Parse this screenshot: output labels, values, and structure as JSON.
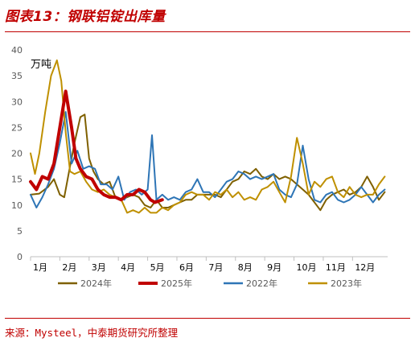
{
  "header": {
    "title": "图表13：钢联铝锭出库量"
  },
  "footer": {
    "source": "来源：Mysteel，中泰期货研究所整理"
  },
  "chart_data": {
    "type": "line",
    "unit_label": "万吨",
    "xlabel": "",
    "ylabel": "",
    "ylim": [
      0,
      40
    ],
    "yticks": [
      0,
      5,
      10,
      15,
      20,
      25,
      30,
      35,
      40
    ],
    "x_range": [
      0,
      12.2
    ],
    "month_labels": [
      "1月",
      "2月",
      "3月",
      "4月",
      "5月",
      "6月",
      "7月",
      "8月",
      "9月",
      "10月",
      "11月",
      "12月"
    ],
    "grid": false,
    "legend_position": "bottom",
    "series": [
      {
        "name": "2024年",
        "color": "#7f6000",
        "width": 2,
        "points": [
          [
            0,
            12
          ],
          [
            0.3,
            12.2
          ],
          [
            0.6,
            13.5
          ],
          [
            0.8,
            15
          ],
          [
            1.0,
            12
          ],
          [
            1.15,
            11.5
          ],
          [
            1.3,
            16
          ],
          [
            1.5,
            22
          ],
          [
            1.7,
            27
          ],
          [
            1.85,
            27.5
          ],
          [
            2.0,
            19
          ],
          [
            2.15,
            16.5
          ],
          [
            2.3,
            15
          ],
          [
            2.5,
            14
          ],
          [
            2.7,
            14.5
          ],
          [
            2.9,
            11.5
          ],
          [
            3.1,
            11
          ],
          [
            3.3,
            11.5
          ],
          [
            3.5,
            12
          ],
          [
            3.7,
            11.5
          ],
          [
            3.9,
            10
          ],
          [
            4.1,
            9.5
          ],
          [
            4.3,
            11
          ],
          [
            4.5,
            9.5
          ],
          [
            4.7,
            9.5
          ],
          [
            4.9,
            10
          ],
          [
            5.1,
            10.5
          ],
          [
            5.3,
            11
          ],
          [
            5.5,
            11
          ],
          [
            5.7,
            12
          ],
          [
            5.9,
            12
          ],
          [
            6.1,
            12
          ],
          [
            6.3,
            12
          ],
          [
            6.5,
            11.5
          ],
          [
            6.7,
            13
          ],
          [
            6.9,
            14.5
          ],
          [
            7.1,
            15
          ],
          [
            7.3,
            16.5
          ],
          [
            7.5,
            16
          ],
          [
            7.7,
            17
          ],
          [
            7.9,
            15.5
          ],
          [
            8.1,
            15
          ],
          [
            8.3,
            16
          ],
          [
            8.5,
            15
          ],
          [
            8.7,
            15.5
          ],
          [
            8.9,
            15
          ],
          [
            9.1,
            14
          ],
          [
            9.3,
            13
          ],
          [
            9.5,
            12
          ],
          [
            9.7,
            10.5
          ],
          [
            9.9,
            9
          ],
          [
            10.1,
            11
          ],
          [
            10.3,
            12
          ],
          [
            10.5,
            12.5
          ],
          [
            10.7,
            13
          ],
          [
            10.9,
            12
          ],
          [
            11.1,
            12.5
          ],
          [
            11.3,
            13.5
          ],
          [
            11.5,
            15.5
          ],
          [
            11.7,
            13.5
          ],
          [
            11.9,
            11
          ],
          [
            12.1,
            12.5
          ]
        ]
      },
      {
        "name": "2025年",
        "color": "#c00000",
        "width": 4,
        "points": [
          [
            0,
            14.5
          ],
          [
            0.2,
            13
          ],
          [
            0.4,
            15.5
          ],
          [
            0.6,
            15
          ],
          [
            0.8,
            18
          ],
          [
            1.0,
            25
          ],
          [
            1.2,
            32
          ],
          [
            1.4,
            25
          ],
          [
            1.55,
            19
          ],
          [
            1.7,
            17
          ],
          [
            1.9,
            15.5
          ],
          [
            2.1,
            15
          ],
          [
            2.3,
            13
          ],
          [
            2.5,
            12
          ],
          [
            2.7,
            11.5
          ],
          [
            2.9,
            11.5
          ],
          [
            3.1,
            11
          ],
          [
            3.3,
            12
          ],
          [
            3.5,
            12
          ],
          [
            3.7,
            13
          ],
          [
            3.9,
            12.5
          ],
          [
            4.1,
            11
          ],
          [
            4.25,
            10.5
          ],
          [
            4.5,
            11
          ]
        ]
      },
      {
        "name": "2022年",
        "color": "#2e75b6",
        "width": 2,
        "points": [
          [
            0,
            12
          ],
          [
            0.2,
            9.5
          ],
          [
            0.4,
            11.5
          ],
          [
            0.6,
            14
          ],
          [
            0.8,
            17
          ],
          [
            1.0,
            22
          ],
          [
            1.2,
            28
          ],
          [
            1.4,
            18
          ],
          [
            1.6,
            20.5
          ],
          [
            1.8,
            17
          ],
          [
            2.0,
            17.5
          ],
          [
            2.2,
            17
          ],
          [
            2.4,
            14
          ],
          [
            2.6,
            14
          ],
          [
            2.8,
            13
          ],
          [
            3.0,
            15.5
          ],
          [
            3.2,
            11
          ],
          [
            3.4,
            12.5
          ],
          [
            3.6,
            13
          ],
          [
            3.8,
            12
          ],
          [
            4.0,
            13
          ],
          [
            4.15,
            23.5
          ],
          [
            4.3,
            11
          ],
          [
            4.5,
            12
          ],
          [
            4.7,
            11
          ],
          [
            4.9,
            11.5
          ],
          [
            5.1,
            11
          ],
          [
            5.3,
            12.5
          ],
          [
            5.5,
            13
          ],
          [
            5.7,
            15
          ],
          [
            5.9,
            12.5
          ],
          [
            6.1,
            12.5
          ],
          [
            6.3,
            11.5
          ],
          [
            6.5,
            13
          ],
          [
            6.7,
            14.5
          ],
          [
            6.9,
            15
          ],
          [
            7.1,
            16.5
          ],
          [
            7.3,
            16
          ],
          [
            7.5,
            15
          ],
          [
            7.7,
            15.5
          ],
          [
            7.9,
            15
          ],
          [
            8.1,
            15.5
          ],
          [
            8.3,
            16
          ],
          [
            8.5,
            13
          ],
          [
            8.7,
            12
          ],
          [
            8.9,
            11.5
          ],
          [
            9.1,
            14
          ],
          [
            9.3,
            21.5
          ],
          [
            9.5,
            15
          ],
          [
            9.7,
            11
          ],
          [
            9.9,
            10.5
          ],
          [
            10.1,
            12
          ],
          [
            10.3,
            12.5
          ],
          [
            10.5,
            11
          ],
          [
            10.7,
            10.5
          ],
          [
            10.9,
            11
          ],
          [
            11.1,
            12
          ],
          [
            11.3,
            13.5
          ],
          [
            11.5,
            12
          ],
          [
            11.7,
            10.5
          ],
          [
            11.9,
            12
          ],
          [
            12.1,
            13
          ]
        ]
      },
      {
        "name": "2023年",
        "color": "#bf9000",
        "width": 2,
        "points": [
          [
            0,
            20
          ],
          [
            0.15,
            16
          ],
          [
            0.3,
            20
          ],
          [
            0.5,
            28
          ],
          [
            0.7,
            35
          ],
          [
            0.9,
            38
          ],
          [
            1.05,
            34
          ],
          [
            1.2,
            24
          ],
          [
            1.35,
            16.5
          ],
          [
            1.5,
            16
          ],
          [
            1.7,
            16.5
          ],
          [
            1.9,
            14.5
          ],
          [
            2.1,
            13
          ],
          [
            2.3,
            12.5
          ],
          [
            2.5,
            13
          ],
          [
            2.7,
            12
          ],
          [
            2.9,
            11.5
          ],
          [
            3.1,
            11
          ],
          [
            3.3,
            8.5
          ],
          [
            3.5,
            9
          ],
          [
            3.7,
            8.5
          ],
          [
            3.9,
            9.5
          ],
          [
            4.1,
            8.5
          ],
          [
            4.3,
            8.5
          ],
          [
            4.5,
            9.5
          ],
          [
            4.7,
            9
          ],
          [
            4.9,
            10
          ],
          [
            5.1,
            10.5
          ],
          [
            5.3,
            12
          ],
          [
            5.5,
            12.5
          ],
          [
            5.7,
            12
          ],
          [
            5.9,
            12
          ],
          [
            6.1,
            11
          ],
          [
            6.3,
            12.5
          ],
          [
            6.5,
            12
          ],
          [
            6.7,
            13
          ],
          [
            6.9,
            11.5
          ],
          [
            7.1,
            12.5
          ],
          [
            7.3,
            11
          ],
          [
            7.5,
            11.5
          ],
          [
            7.7,
            11
          ],
          [
            7.9,
            13
          ],
          [
            8.1,
            13.5
          ],
          [
            8.3,
            14.5
          ],
          [
            8.5,
            12.5
          ],
          [
            8.7,
            10.5
          ],
          [
            8.9,
            15.5
          ],
          [
            9.1,
            23
          ],
          [
            9.3,
            18
          ],
          [
            9.5,
            12
          ],
          [
            9.7,
            14.5
          ],
          [
            9.9,
            13.5
          ],
          [
            10.1,
            15
          ],
          [
            10.3,
            15.5
          ],
          [
            10.5,
            12.5
          ],
          [
            10.7,
            11.5
          ],
          [
            10.9,
            13.5
          ],
          [
            11.1,
            12
          ],
          [
            11.3,
            11.5
          ],
          [
            11.5,
            12
          ],
          [
            11.7,
            12
          ],
          [
            11.9,
            14
          ],
          [
            12.1,
            15.5
          ]
        ]
      }
    ]
  }
}
